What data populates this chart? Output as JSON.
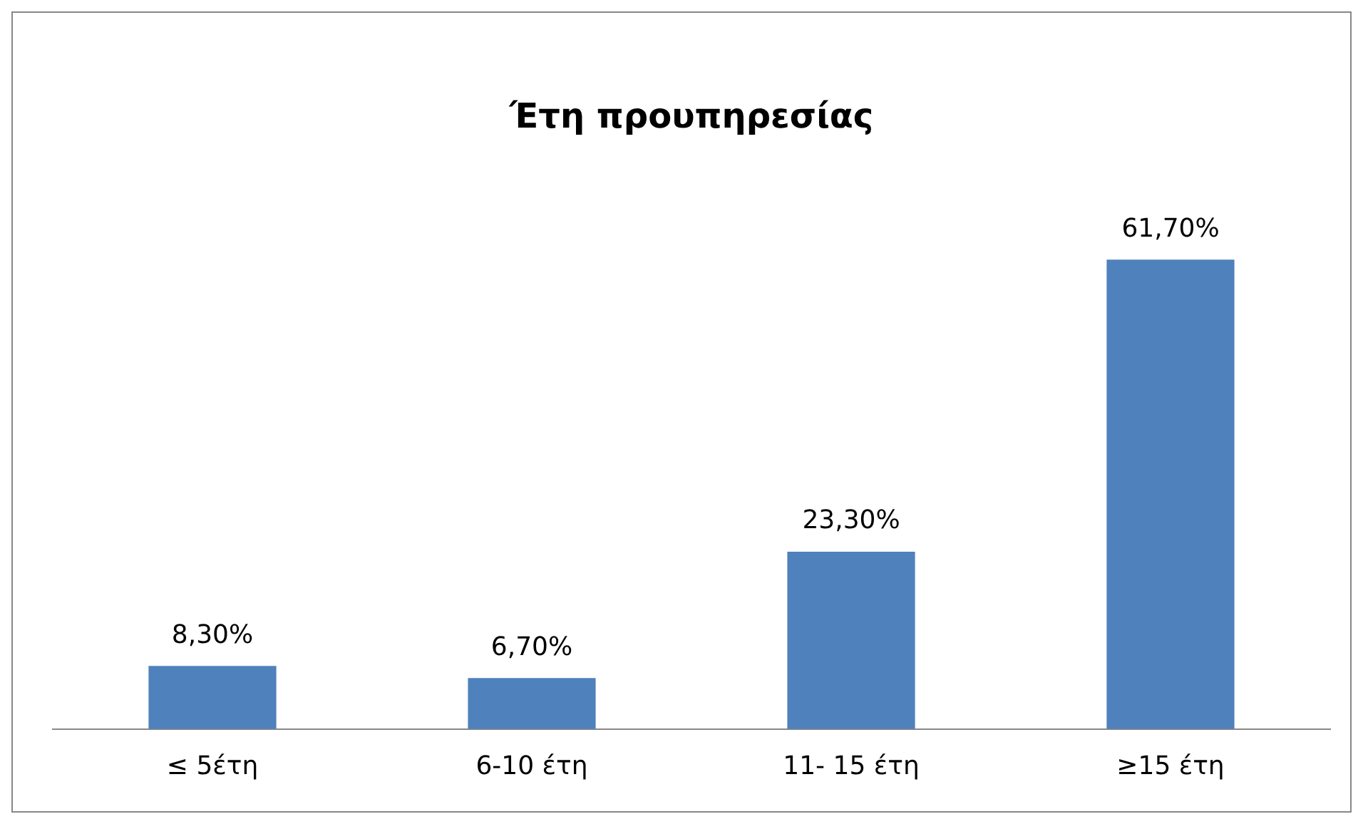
{
  "chart_data": {
    "type": "bar",
    "title": "Έτη προυπηρεσίας",
    "categories": [
      "≤ 5έτη",
      "6-10 έτη",
      "11- 15 έτη",
      "≥15 έτη"
    ],
    "values": [
      8.3,
      6.7,
      23.3,
      61.7
    ],
    "value_labels": [
      "8,30%",
      "6,70%",
      "23,30%",
      "61,70%"
    ],
    "color": "#4f81bd",
    "grid": false,
    "legend": false
  }
}
